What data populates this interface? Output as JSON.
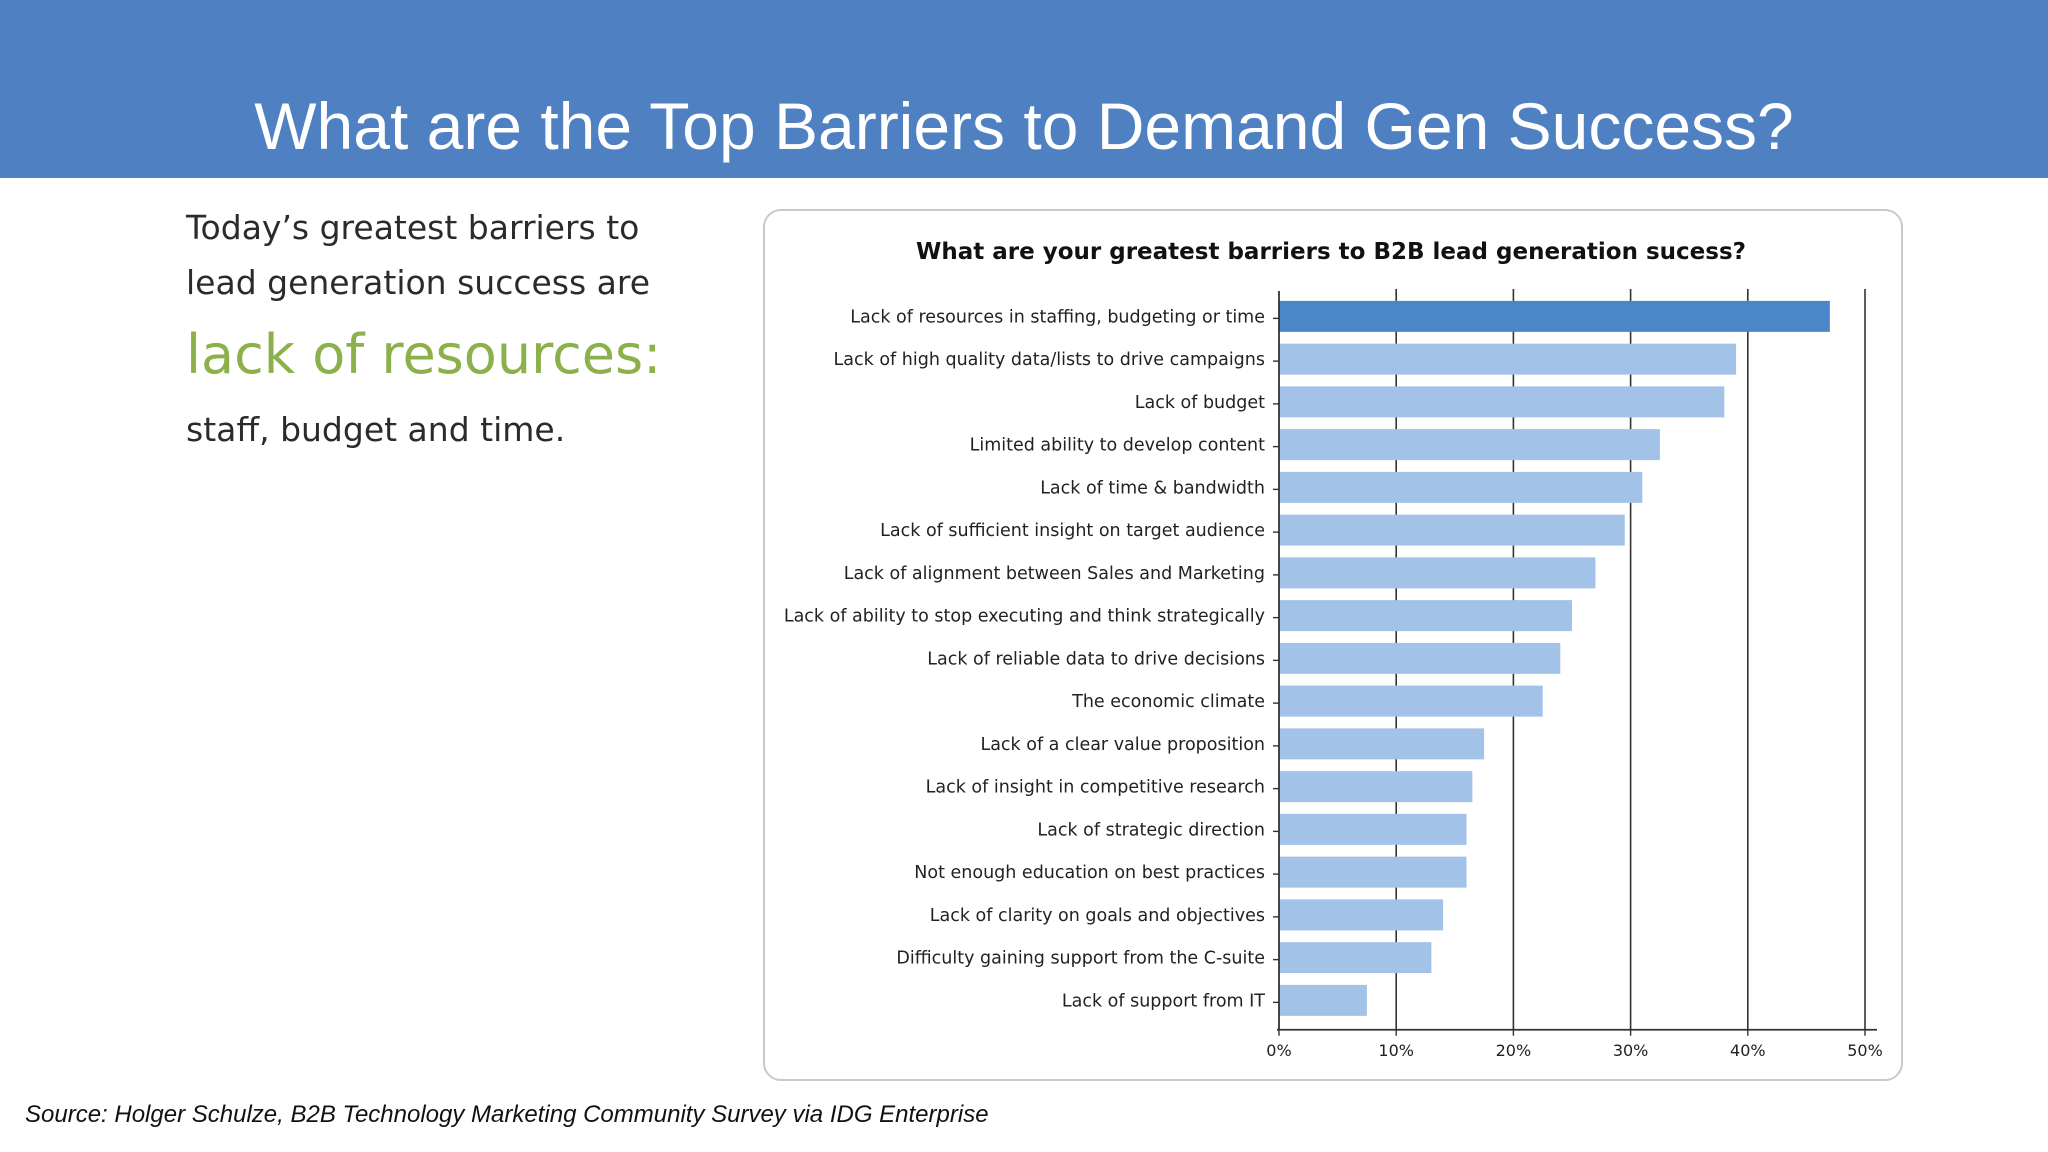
{
  "slide": {
    "title": "What are the Top Barriers to Demand Gen Success?",
    "callout": {
      "line1": "Today’s greatest barriers to",
      "line2": "lead generation success are",
      "highlight": "lack of resources:",
      "line3": "staff, budget and time."
    },
    "source": "Source:  Holger Schulze, B2B Technology Marketing Community Survey via IDG Enterprise"
  },
  "colors": {
    "header_bg": "#4f81c2",
    "highlight_text": "#8cb04a",
    "bar_top": "#4a86c8",
    "bar": "#a3c2e8"
  },
  "chart_data": {
    "type": "bar",
    "orientation": "horizontal",
    "title": "What are your greatest barriers to B2B lead generation sucess?",
    "categories": [
      "Lack of resources in staffing, budgeting or time",
      "Lack of high quality data/lists to drive campaigns",
      "Lack of budget",
      "Limited ability to develop content",
      "Lack of time & bandwidth",
      "Lack of sufficient insight on target audience",
      "Lack of alignment between Sales and Marketing",
      "Lack of ability to stop executing and think strategically",
      "Lack of reliable data to drive decisions",
      "The economic climate",
      "Lack of a clear value proposition",
      "Lack of insight in competitive research",
      "Lack of strategic direction",
      "Not enough education on best practices",
      "Lack of clarity on goals and objectives",
      "Difficulty gaining support from the C-suite",
      "Lack of support from IT"
    ],
    "values": [
      47,
      39,
      38,
      32.5,
      31,
      29.5,
      27,
      25,
      24,
      22.5,
      17.5,
      16.5,
      16,
      16,
      14,
      13,
      7.5
    ],
    "value_unit": "%",
    "xlim": [
      0,
      50
    ],
    "xticks": [
      "0%",
      "10%",
      "20%",
      "30%",
      "40%",
      "50%"
    ],
    "xtick_values": [
      0,
      10,
      20,
      30,
      40,
      50
    ],
    "grid": "vertical",
    "highlighted_index": 0
  }
}
